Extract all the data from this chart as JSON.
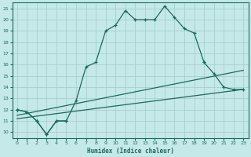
{
  "xlabel": "Humidex (Indice chaleur)",
  "bg_color": "#c5e8e8",
  "grid_color": "#a8d0d0",
  "line_color": "#1a6b5a",
  "xlim": [
    -0.5,
    23.5
  ],
  "ylim": [
    9.5,
    21.5
  ],
  "xticks": [
    0,
    1,
    2,
    3,
    4,
    5,
    6,
    7,
    8,
    9,
    10,
    11,
    12,
    13,
    14,
    15,
    16,
    17,
    18,
    19,
    20,
    21,
    22,
    23
  ],
  "yticks": [
    10,
    11,
    12,
    13,
    14,
    15,
    16,
    17,
    18,
    19,
    20,
    21
  ],
  "line1_x": [
    0,
    1,
    2,
    3,
    4,
    5,
    6,
    7,
    8,
    9,
    10,
    11,
    12,
    13,
    14,
    15,
    16,
    17,
    18,
    19
  ],
  "line1_y": [
    12,
    11.8,
    11,
    9.8,
    11,
    11,
    12.8,
    15.8,
    16.2,
    19,
    19.5,
    20.8,
    20,
    20,
    20,
    21.2,
    20.2,
    19.2,
    18.8,
    16.2
  ],
  "line2a_x": [
    0,
    1,
    2,
    3,
    4,
    5
  ],
  "line2a_y": [
    12,
    11.8,
    11,
    9.8,
    11,
    11
  ],
  "line2b_x": [
    19,
    20,
    21,
    22,
    23
  ],
  "line2b_y": [
    16.2,
    15.2,
    14,
    13.8,
    13.8
  ],
  "line3_x": [
    0,
    23
  ],
  "line3_y": [
    11.5,
    15.5
  ],
  "line4_x": [
    0,
    23
  ],
  "line4_y": [
    11.2,
    13.8
  ]
}
